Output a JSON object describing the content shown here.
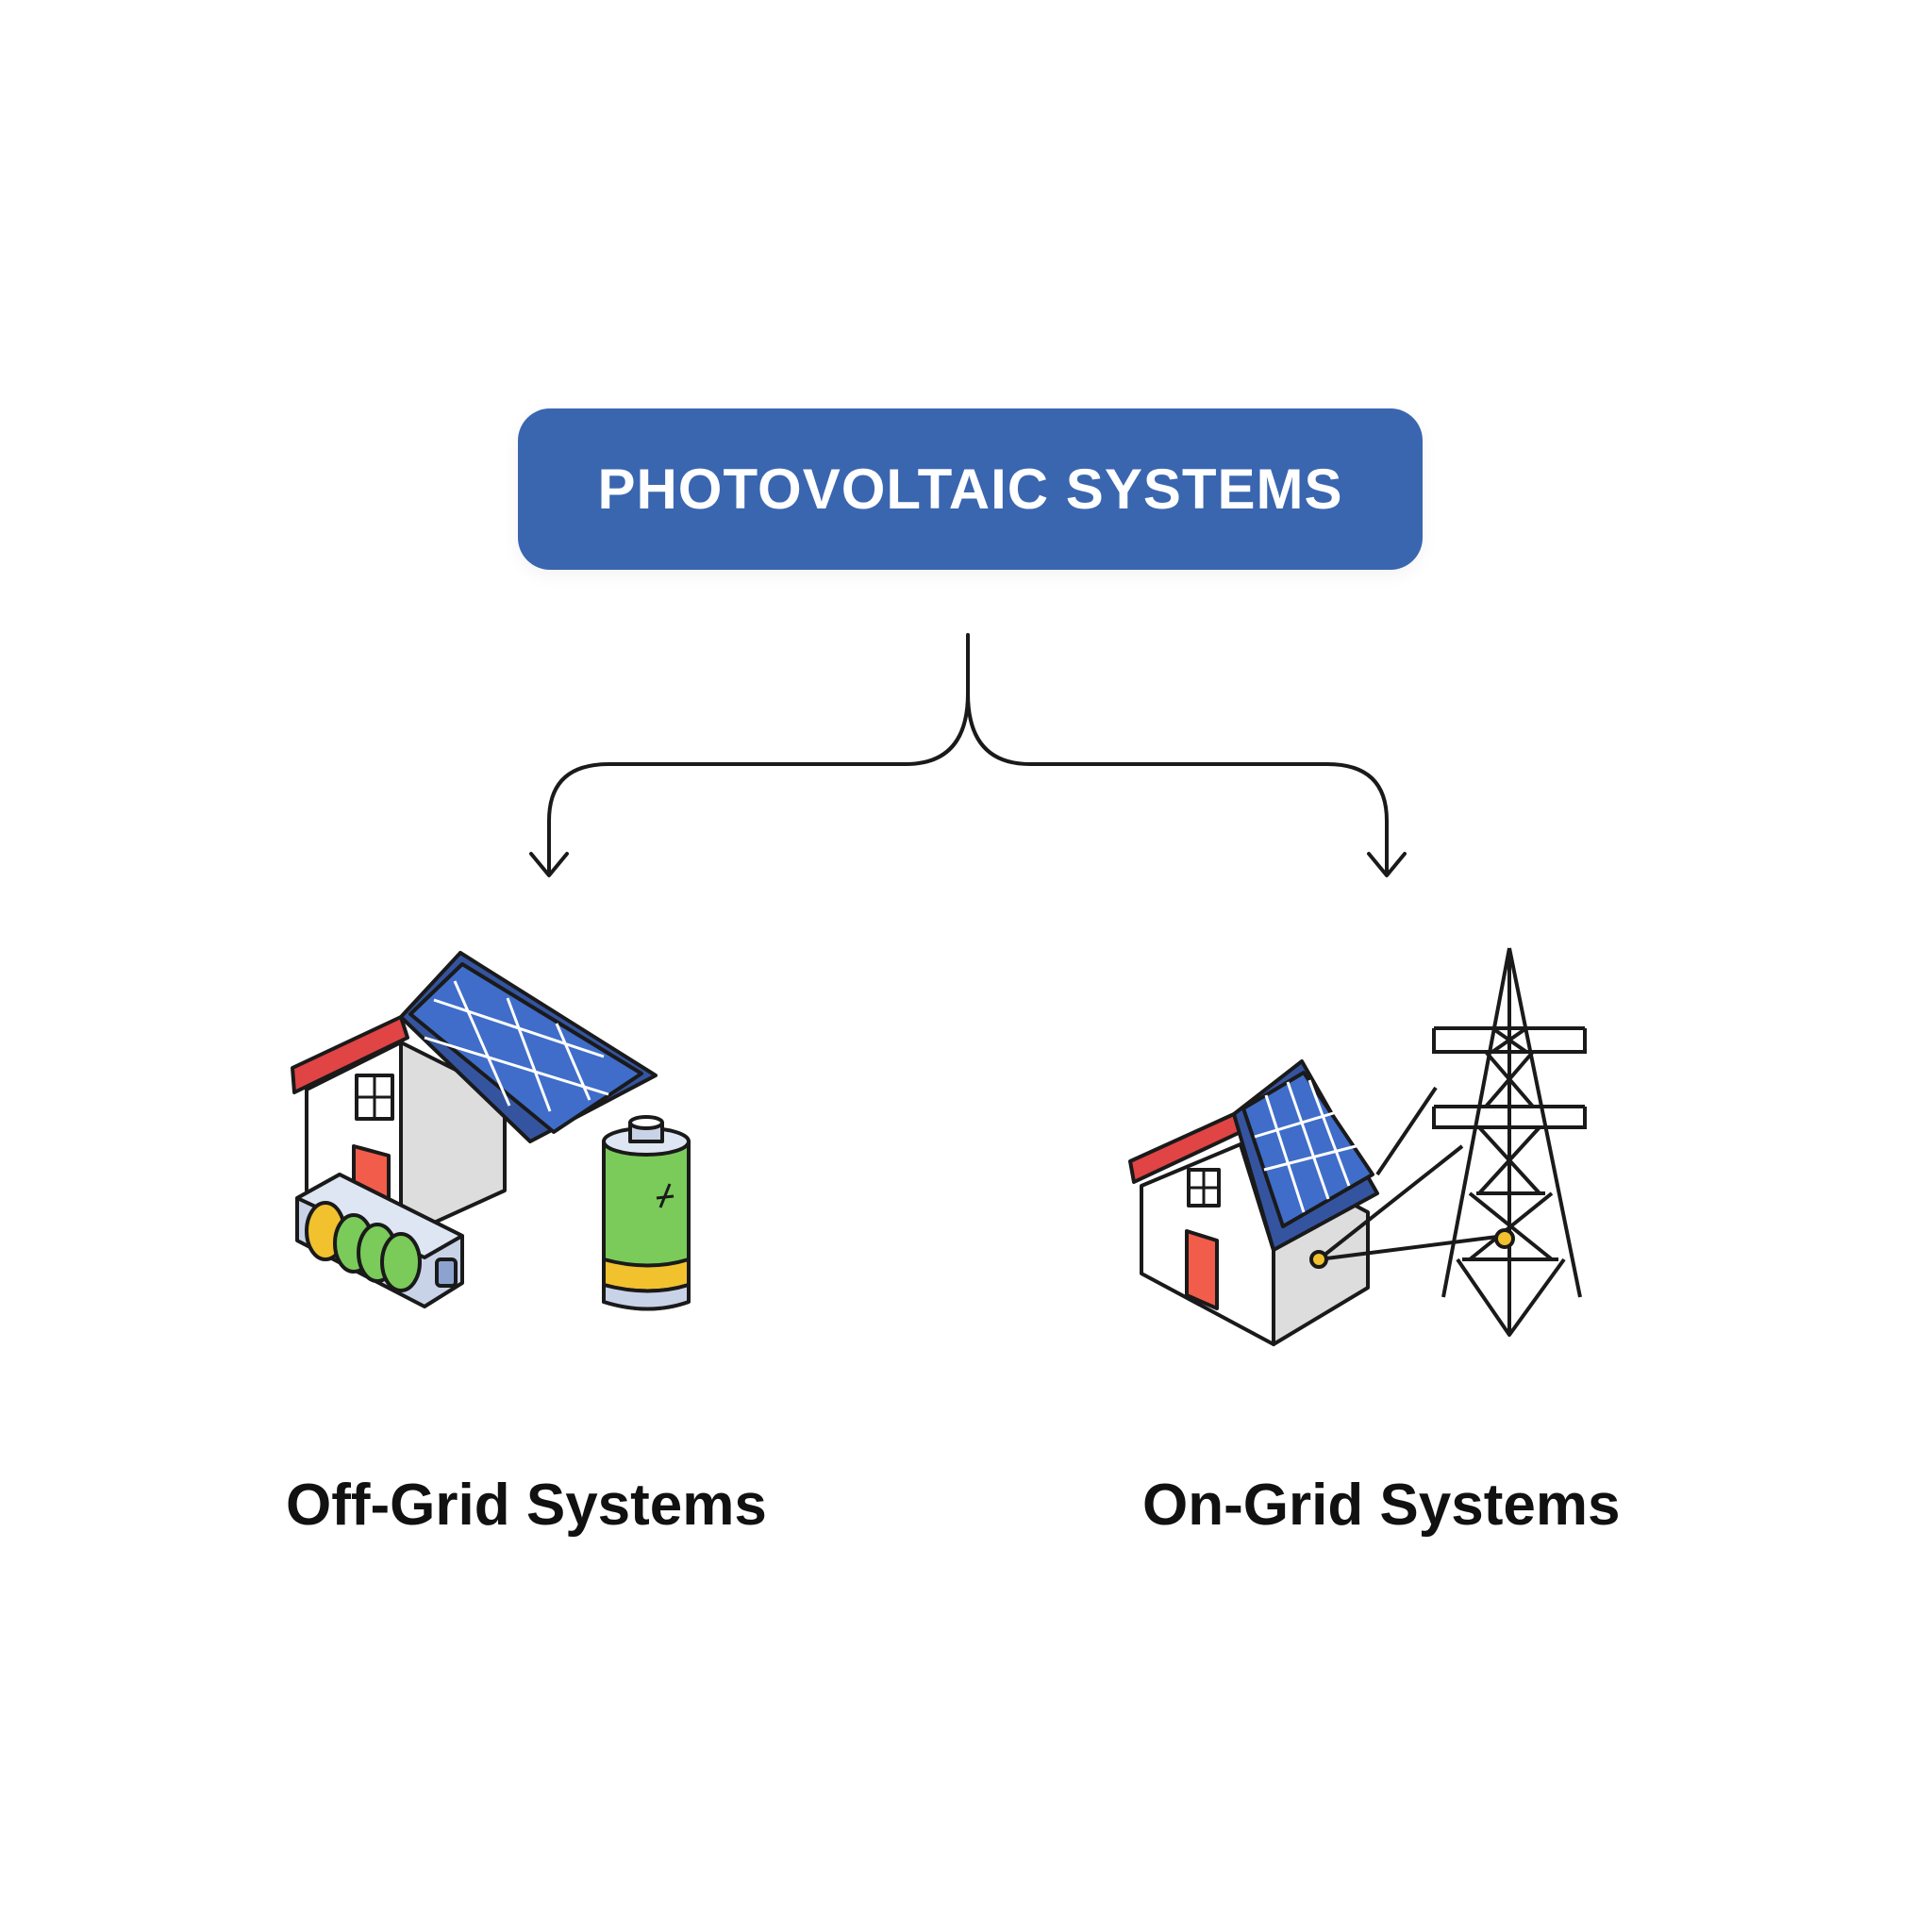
{
  "root": {
    "label": "PHOTOVOLTAIC SYSTEMS"
  },
  "branches": [
    {
      "label": "Off-Grid Systems",
      "icon": "house-with-batteries-icon"
    },
    {
      "label": "On-Grid Systems",
      "icon": "house-with-transmission-tower-icon"
    }
  ],
  "colors": {
    "root_fill": "#3a66b0",
    "roof_red": "#e04444",
    "panel_blue": "#3f6dc9",
    "battery_green": "#7acb5a",
    "battery_yellow": "#f2c12e",
    "door_red": "#f25c4a",
    "outline": "#1a1a1a"
  }
}
